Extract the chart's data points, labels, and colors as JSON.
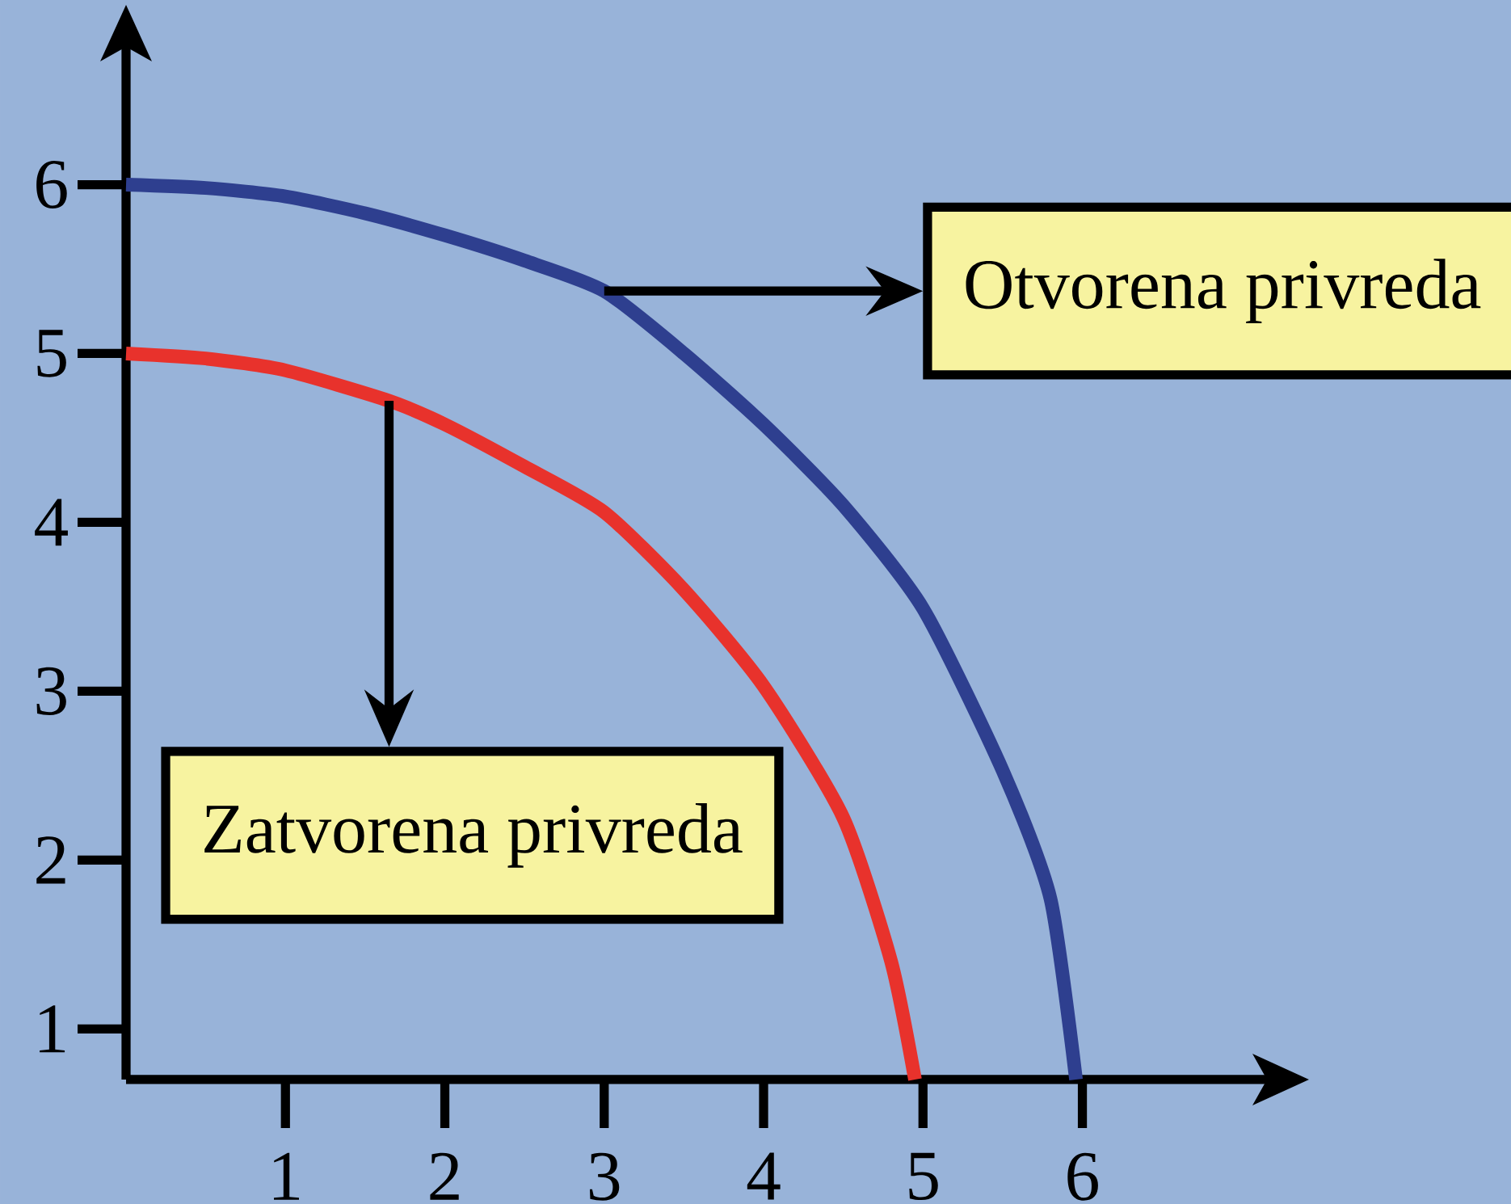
{
  "chart_data": {
    "type": "line",
    "x": [
      0,
      0.5,
      1,
      1.65,
      2,
      2.5,
      3,
      3.5,
      4,
      4.5,
      4.8,
      4.95
    ],
    "series": [
      {
        "color": "#2e3f8f",
        "x": [
          0,
          0.5,
          1,
          1.5,
          2,
          2.5,
          3,
          3.5,
          4,
          4.5,
          5,
          5.5,
          5.8,
          5.96
        ],
        "values": [
          6,
          5.98,
          5.93,
          5.83,
          5.7,
          5.55,
          5.37,
          5.0,
          4.58,
          4.1,
          3.49,
          2.53,
          1.77,
          0.7
        ]
      },
      {
        "color": "#e8322c",
        "values": [
          5,
          4.97,
          4.9,
          4.72,
          4.58,
          4.33,
          4.06,
          3.6,
          3.03,
          2.25,
          1.4,
          0.7
        ]
      }
    ],
    "annotations": [
      {
        "text": "Otvorena privreda",
        "x": 3,
        "y": 5.37
      },
      {
        "text": "Zatvorena privreda",
        "x": 1.65,
        "y": 4.72
      }
    ],
    "xlim": [
      0,
      7.3
    ],
    "ylim": [
      0.7,
      6.95
    ],
    "xticks": [
      1,
      2,
      3,
      4,
      5,
      6
    ],
    "yticks": [
      1,
      2,
      3,
      4,
      5,
      6
    ],
    "grid": false,
    "marker": "none",
    "line_style": "solid"
  }
}
